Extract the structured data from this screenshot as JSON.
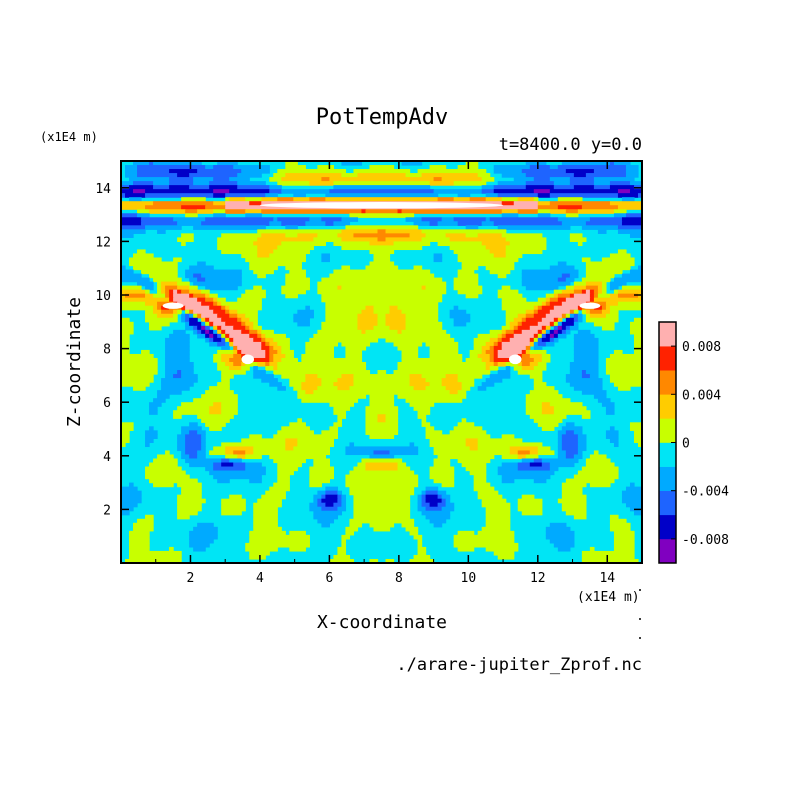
{
  "chart_data": {
    "type": "heatmap",
    "title": "PotTempAdv",
    "subtitle": "t=8400.0 y=0.0",
    "xlabel": "X-coordinate",
    "ylabel": "Z-coordinate",
    "x_unit": "(x1E4 m)",
    "z_unit": "(x1E4 m)",
    "source_file": "./arare-jupiter_Zprof.nc",
    "xlim": [
      0,
      15
    ],
    "ylim": [
      0,
      15
    ],
    "x_ticks": [
      2,
      4,
      6,
      8,
      10,
      12,
      14
    ],
    "y_ticks": [
      2,
      4,
      6,
      8,
      10,
      12,
      14
    ],
    "colorbar": {
      "levels": [
        -0.01,
        -0.008,
        -0.006,
        -0.004,
        -0.002,
        0,
        0.002,
        0.004,
        0.006,
        0.008,
        0.01
      ],
      "colors": [
        "#8000c0",
        "#0000c8",
        "#1e64ff",
        "#00aaff",
        "#00e5f5",
        "#c8ff00",
        "#ffcc00",
        "#ff8800",
        "#ff2200",
        "#ffb0b0"
      ],
      "tick_values": [
        0.008,
        0.004,
        0,
        -0.004,
        -0.008
      ],
      "tick_labels": [
        "0.008",
        "0.004",
        "0",
        "-0.004",
        "-0.008"
      ]
    },
    "field_description_levels": "symmetric about x=7.5; strong anomalies near z=13 and z=8"
  }
}
